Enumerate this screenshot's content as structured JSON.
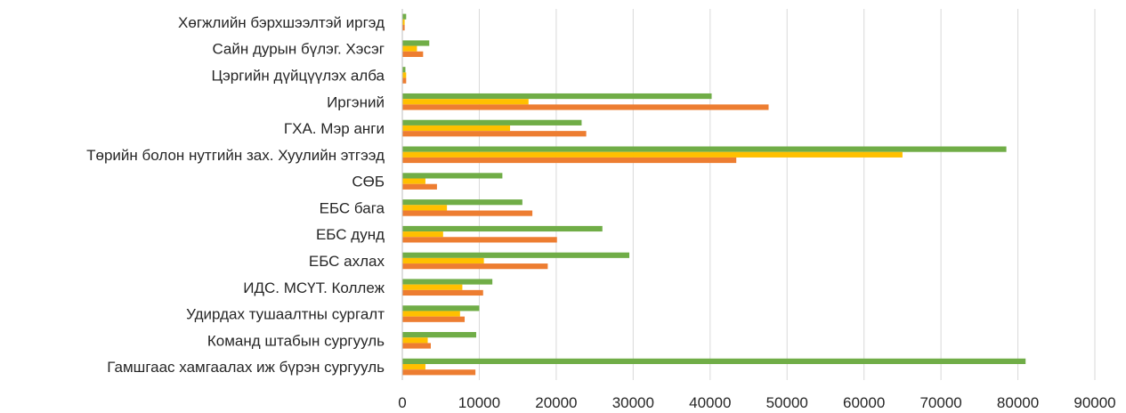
{
  "chart_data": {
    "type": "bar",
    "orientation": "horizontal",
    "categories": [
      "Хөгжлийн бэрхшээлтэй иргэд",
      "Сайн дурын бүлэг. Хэсэг",
      "Цэргийн дүйцүүлэх алба",
      "Иргэний",
      "ГХА. Мэр анги",
      "Төрийн болон нутгийн зах. Хуулийн этгээд",
      "СӨБ",
      "ЕБС бага",
      "ЕБС дунд",
      "ЕБС ахлах",
      "ИДС. МСҮТ. Коллеж",
      "Удирдах тушаалтны сургалт",
      "Команд штабын сургууль",
      "Гамшгаас хамгаалах иж бүрэн сургууль"
    ],
    "series": [
      {
        "color": "#70ad47",
        "values": [
          500,
          3500,
          400,
          40200,
          23300,
          78500,
          13000,
          15600,
          26000,
          29500,
          11700,
          10000,
          9600,
          81000
        ]
      },
      {
        "color": "#ffc000",
        "values": [
          300,
          1900,
          500,
          16400,
          14000,
          65000,
          3000,
          5800,
          5300,
          10600,
          7800,
          7500,
          3300,
          3000
        ]
      },
      {
        "color": "#ed7d31",
        "values": [
          300,
          2700,
          500,
          47600,
          23900,
          43400,
          4500,
          16900,
          20100,
          18900,
          10500,
          8100,
          3700,
          9500
        ]
      }
    ],
    "xlim": [
      0,
      90000
    ],
    "xticks": [
      "0",
      "10000",
      "20000",
      "30000",
      "40000",
      "50000",
      "60000",
      "70000",
      "80000",
      "90000"
    ],
    "grid": true,
    "legend": "none"
  }
}
